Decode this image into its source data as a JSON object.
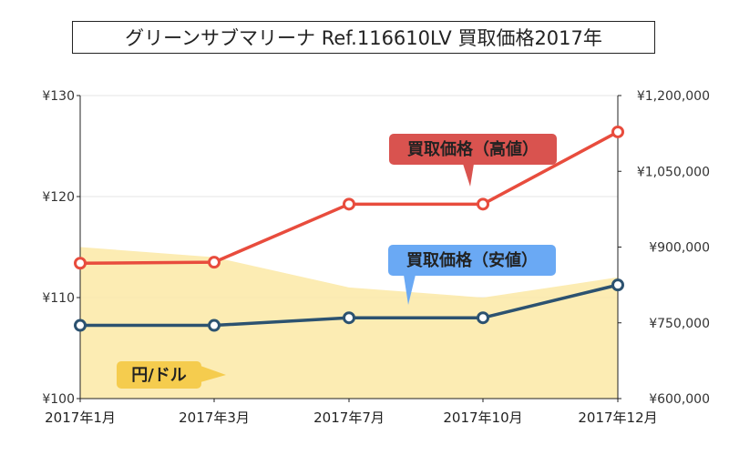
{
  "chart_data": {
    "type": "line",
    "title": "グリーンサブマリーナ Ref.116610LV 買取価格2017年",
    "categories": [
      "2017年1月",
      "2017年3月",
      "2017年7月",
      "2017年10月",
      "2017年12月"
    ],
    "y_left": {
      "ylim": [
        100,
        130
      ],
      "ticks": [
        "¥100",
        "¥110",
        "¥120",
        "¥130"
      ],
      "tick_values": [
        100,
        110,
        120,
        130
      ]
    },
    "y_right": {
      "ylim": [
        600000,
        1200000
      ],
      "ticks": [
        "¥600,000",
        "¥750,000",
        "¥900,000",
        "¥1,050,000",
        "¥1,200,000"
      ],
      "tick_values": [
        600000,
        750000,
        900000,
        1050000,
        1200000
      ]
    },
    "series": [
      {
        "name": "買取価格（高値）",
        "axis": "right",
        "color": "#e84c3d",
        "values": [
          868000,
          870000,
          985000,
          985000,
          1128000
        ]
      },
      {
        "name": "買取価格（安値）",
        "axis": "right",
        "color": "#2c5270",
        "values": [
          745000,
          745000,
          760000,
          760000,
          825000
        ]
      },
      {
        "name": "円/ドル",
        "axis": "left",
        "type": "area",
        "color": "#fbe9a6",
        "values": [
          115,
          114,
          111,
          110,
          112
        ]
      }
    ],
    "callouts": {
      "high": {
        "label": "買取価格（高値）",
        "bg": "#d9534f",
        "text_color": "#222"
      },
      "low": {
        "label": "買取価格（安値）",
        "bg": "#6aa9f4",
        "text_color": "#222"
      },
      "fx": {
        "label": "円/ドル",
        "bg": "#f5cc4e",
        "text_color": "#222"
      }
    },
    "grid": true
  }
}
